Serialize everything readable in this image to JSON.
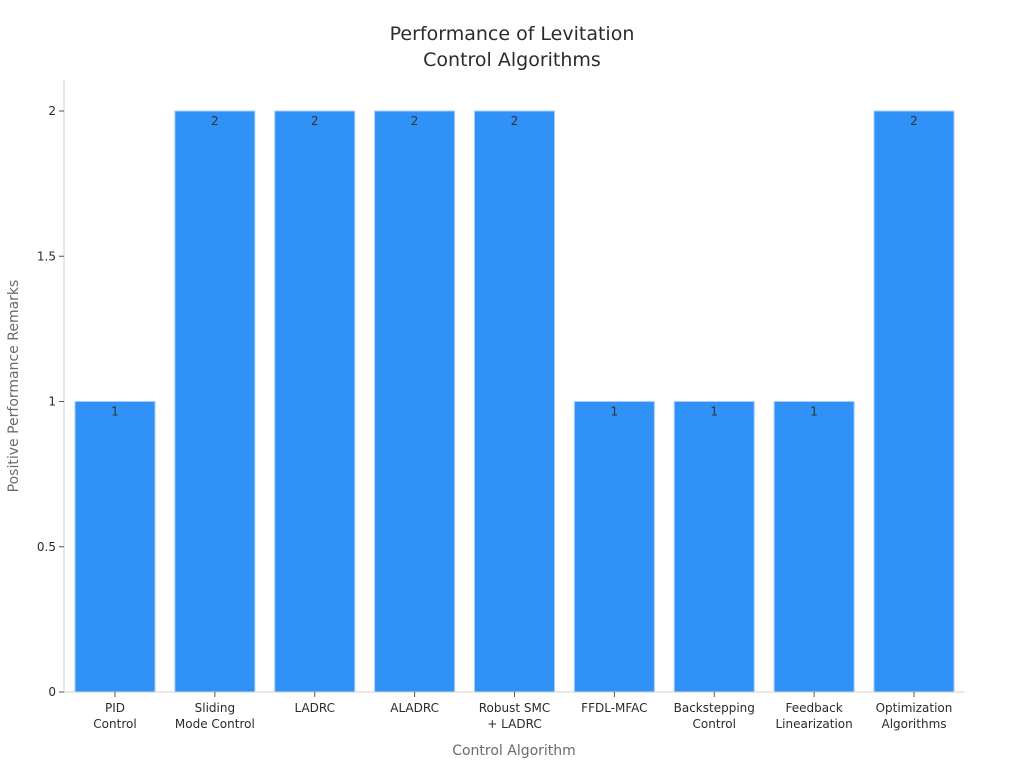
{
  "chart_data": {
    "type": "bar",
    "title": [
      "Performance of Levitation",
      "Control Algorithms"
    ],
    "xlabel": "Control Algorithm",
    "ylabel": "Positive Performance Remarks",
    "categories": [
      [
        "PID",
        "Control"
      ],
      [
        "Sliding",
        "Mode Control"
      ],
      [
        "LADRC"
      ],
      [
        "ALADRC"
      ],
      [
        "Robust SMC",
        "+ LADRC"
      ],
      [
        "FFDL-MFAC"
      ],
      [
        "Backstepping",
        "Control"
      ],
      [
        "Feedback",
        "Linearization"
      ],
      [
        "Optimization",
        "Algorithms"
      ]
    ],
    "values": [
      1,
      2,
      2,
      2,
      2,
      1,
      1,
      1,
      2
    ],
    "data_labels": [
      "1",
      "2",
      "2",
      "2",
      "2",
      "1",
      "1",
      "1",
      "2"
    ],
    "ylim": [
      0,
      2
    ],
    "yticks": [
      0,
      0.5,
      1,
      1.5,
      2
    ],
    "ytick_labels": [
      "0",
      "0.5",
      "1",
      "1.5",
      "2"
    ],
    "grid": false,
    "bar_color": "#3091f7",
    "bar_edge_color": "#a9cdf9"
  }
}
